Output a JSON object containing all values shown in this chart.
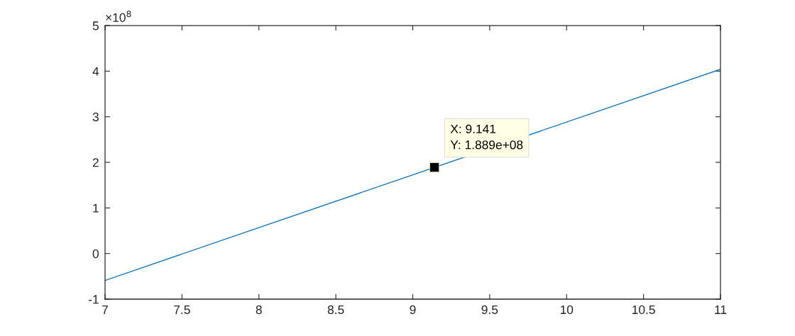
{
  "chart_data": {
    "type": "line",
    "series": [
      {
        "color": "#0072bd",
        "x": [
          7,
          11
        ],
        "values": [
          -0.59,
          4.04
        ]
      },
      {
        "type": "scatter",
        "color": "#000000",
        "marker": "square",
        "x": [
          9.141
        ],
        "values": [
          1.889
        ]
      }
    ],
    "xlim": [
      7,
      11
    ],
    "xticks": [
      7,
      7.5,
      8,
      8.5,
      9,
      9.5,
      10,
      10.5,
      11
    ],
    "ylim": [
      -1,
      5
    ],
    "yticks": [
      -1,
      0,
      1,
      2,
      3,
      4,
      5
    ],
    "annotations": [
      "×10$^{8}$",
      {
        "text": "X: 9.141\nY: 1.889e+08",
        "x": 9.141,
        "y": 1.889
      }
    ]
  }
}
